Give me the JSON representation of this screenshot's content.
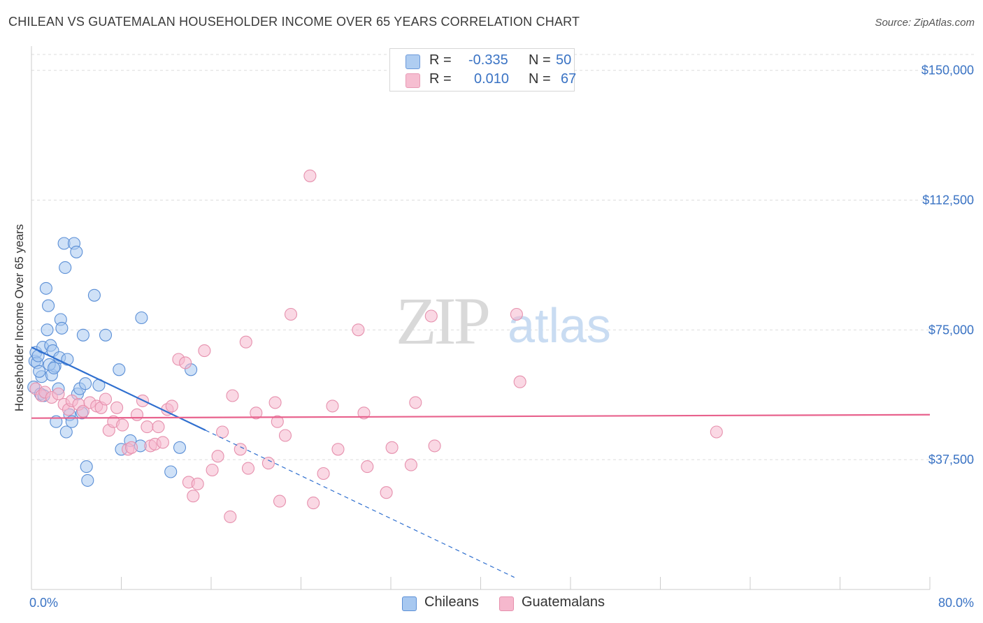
{
  "header": {
    "title": "CHILEAN VS GUATEMALAN HOUSEHOLDER INCOME OVER 65 YEARS CORRELATION CHART",
    "source": "Source: ZipAtlas.com"
  },
  "watermark": {
    "zip": "ZIP",
    "atlas": "atlas"
  },
  "legend": {
    "rows": [
      {
        "r_label": "R =",
        "r_value": "-0.335",
        "n_label": "N =",
        "n_value": "50",
        "color": "#a7c8f0"
      },
      {
        "r_label": "R =",
        "r_value": "0.010",
        "n_label": "N =",
        "n_value": "67",
        "color": "#f6b8cd"
      }
    ]
  },
  "bottom_legend": [
    {
      "label": "Chileans",
      "color": "#a7c8f0"
    },
    {
      "label": "Guatemalans",
      "color": "#f6b8cd"
    }
  ],
  "colors": {
    "chileans_fill": "#a7c8f0",
    "chileans_stroke": "#5b8fd6",
    "chileans_line": "#2f6fcf",
    "guatemalans_fill": "#f6b8cd",
    "guatemalans_stroke": "#e690ad",
    "guatemalans_line": "#e8628d",
    "tick_text": "#3a73c4",
    "grid": "#dddddd"
  },
  "chart_data": {
    "type": "scatter",
    "title": "CHILEAN VS GUATEMALAN HOUSEHOLDER INCOME OVER 65 YEARS CORRELATION CHART",
    "xlabel": "",
    "ylabel": "Householder Income Over 65 years",
    "xlim": [
      0,
      80
    ],
    "ylim": [
      0,
      157000
    ],
    "x_tick_labels": [
      "0.0%",
      "80.0%"
    ],
    "y_ticks": [
      37500,
      75000,
      112500,
      150000
    ],
    "y_tick_labels": [
      "$37,500",
      "$75,000",
      "$112,500",
      "$150,000"
    ],
    "grid": true,
    "legend_position": "top-center",
    "series": [
      {
        "name": "Chileans",
        "points": [
          [
            0.2,
            58500
          ],
          [
            0.3,
            66000
          ],
          [
            0.4,
            68500
          ],
          [
            0.5,
            65500
          ],
          [
            0.6,
            67500
          ],
          [
            0.8,
            56500
          ],
          [
            0.9,
            61500
          ],
          [
            1.0,
            70000
          ],
          [
            1.3,
            87000
          ],
          [
            1.4,
            75000
          ],
          [
            1.5,
            82000
          ],
          [
            1.7,
            70500
          ],
          [
            1.8,
            62000
          ],
          [
            1.9,
            69000
          ],
          [
            2.1,
            64500
          ],
          [
            2.2,
            48500
          ],
          [
            2.4,
            58000
          ],
          [
            2.5,
            67000
          ],
          [
            2.6,
            78000
          ],
          [
            2.7,
            75500
          ],
          [
            2.9,
            100000
          ],
          [
            3.0,
            93000
          ],
          [
            3.1,
            45500
          ],
          [
            3.2,
            66500
          ],
          [
            3.4,
            50500
          ],
          [
            3.6,
            48500
          ],
          [
            3.8,
            100000
          ],
          [
            4.0,
            97500
          ],
          [
            4.1,
            56500
          ],
          [
            4.3,
            58000
          ],
          [
            4.5,
            51000
          ],
          [
            4.6,
            73500
          ],
          [
            4.8,
            59500
          ],
          [
            4.9,
            35500
          ],
          [
            5.0,
            31500
          ],
          [
            5.6,
            85000
          ],
          [
            6.0,
            59000
          ],
          [
            6.6,
            73500
          ],
          [
            7.8,
            63500
          ],
          [
            8.0,
            40500
          ],
          [
            8.8,
            43000
          ],
          [
            9.7,
            41500
          ],
          [
            9.8,
            78500
          ],
          [
            12.4,
            34000
          ],
          [
            13.2,
            41000
          ],
          [
            14.2,
            63500
          ],
          [
            1.6,
            65000
          ],
          [
            2.0,
            64000
          ],
          [
            0.7,
            63000
          ],
          [
            1.1,
            56000
          ]
        ],
        "trend": {
          "x1": 0,
          "y1": 70000,
          "x2": 15.5,
          "y2": 46000,
          "dash_x2": 43,
          "dash_y2": 3500
        }
      },
      {
        "name": "Guatemalans",
        "points": [
          [
            0.4,
            58000
          ],
          [
            0.9,
            56000
          ],
          [
            1.2,
            57000
          ],
          [
            1.8,
            55500
          ],
          [
            2.4,
            56500
          ],
          [
            2.9,
            53500
          ],
          [
            3.3,
            52000
          ],
          [
            3.6,
            54500
          ],
          [
            4.2,
            53500
          ],
          [
            4.6,
            51500
          ],
          [
            5.2,
            54000
          ],
          [
            5.8,
            53000
          ],
          [
            6.2,
            52500
          ],
          [
            6.6,
            55000
          ],
          [
            6.9,
            46000
          ],
          [
            7.3,
            48500
          ],
          [
            7.6,
            52500
          ],
          [
            8.1,
            47500
          ],
          [
            8.6,
            40500
          ],
          [
            8.9,
            41000
          ],
          [
            9.4,
            50500
          ],
          [
            9.9,
            54500
          ],
          [
            10.3,
            47000
          ],
          [
            10.6,
            41500
          ],
          [
            11.0,
            42000
          ],
          [
            11.3,
            47000
          ],
          [
            11.7,
            42500
          ],
          [
            12.1,
            52000
          ],
          [
            12.5,
            53000
          ],
          [
            13.1,
            66500
          ],
          [
            13.7,
            65500
          ],
          [
            14.0,
            31000
          ],
          [
            14.4,
            27000
          ],
          [
            14.8,
            30500
          ],
          [
            15.4,
            69000
          ],
          [
            16.1,
            34500
          ],
          [
            16.6,
            38500
          ],
          [
            17.0,
            45500
          ],
          [
            17.7,
            21000
          ],
          [
            17.9,
            56000
          ],
          [
            18.6,
            40500
          ],
          [
            19.1,
            71500
          ],
          [
            19.3,
            35000
          ],
          [
            20.0,
            51000
          ],
          [
            21.1,
            36500
          ],
          [
            21.7,
            54000
          ],
          [
            21.9,
            48500
          ],
          [
            22.1,
            25500
          ],
          [
            22.6,
            44500
          ],
          [
            23.1,
            79500
          ],
          [
            24.8,
            119500
          ],
          [
            25.1,
            25000
          ],
          [
            26.0,
            33500
          ],
          [
            26.8,
            53000
          ],
          [
            27.3,
            40500
          ],
          [
            29.1,
            75000
          ],
          [
            29.6,
            51000
          ],
          [
            29.9,
            35500
          ],
          [
            31.6,
            28000
          ],
          [
            32.1,
            41000
          ],
          [
            33.8,
            36000
          ],
          [
            34.2,
            54000
          ],
          [
            35.6,
            79000
          ],
          [
            35.9,
            41500
          ],
          [
            43.2,
            79500
          ],
          [
            43.5,
            60000
          ],
          [
            61.0,
            45500
          ]
        ],
        "trend": {
          "x1": 0,
          "y1": 49500,
          "x2": 80,
          "y2": 50500
        }
      }
    ]
  }
}
